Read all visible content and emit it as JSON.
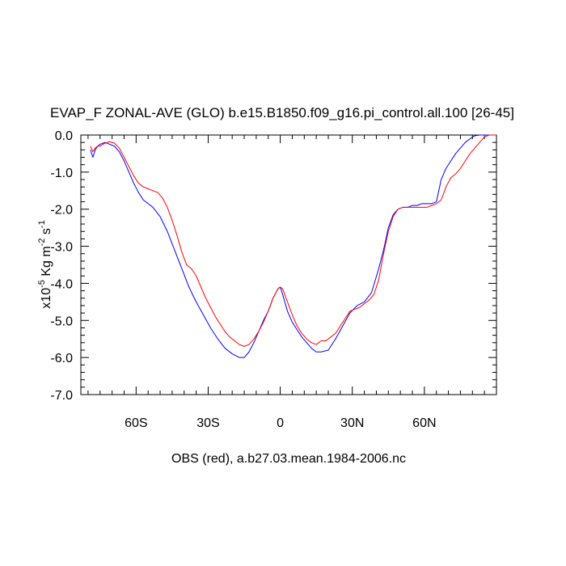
{
  "chart_data": {
    "type": "line",
    "title": "EVAP_F ZONAL-AVE (GLO) b.e15.B1850.f09_g16.pi_control.all.100 [26-45]",
    "xlabel": "OBS (red), a.b27.03.mean.1984-2006.nc",
    "ylabel_main": "x10",
    "ylabel_exp": "-5",
    "ylabel_units": " Kg m",
    "ylabel_exp2": "-2",
    "ylabel_s": " s",
    "ylabel_exp3": "-1",
    "xlim": [
      -83,
      90
    ],
    "ylim": [
      -7.0,
      0.0
    ],
    "x_ticks": [
      {
        "value": -60,
        "label": "60S"
      },
      {
        "value": -30,
        "label": "30S"
      },
      {
        "value": 0,
        "label": "0"
      },
      {
        "value": 30,
        "label": "30N"
      },
      {
        "value": 60,
        "label": "60N"
      }
    ],
    "y_ticks": [
      {
        "value": 0.0,
        "label": "0.0"
      },
      {
        "value": -1.0,
        "label": "-1.0"
      },
      {
        "value": -2.0,
        "label": "-2.0"
      },
      {
        "value": -3.0,
        "label": "-3.0"
      },
      {
        "value": -4.0,
        "label": "-4.0"
      },
      {
        "value": -5.0,
        "label": "-5.0"
      },
      {
        "value": -6.0,
        "label": "-6.0"
      },
      {
        "value": -7.0,
        "label": "-7.0"
      }
    ],
    "series": [
      {
        "color": "#0000ff",
        "x": [
          -79,
          -78,
          -77,
          -76,
          -75,
          -73,
          -71,
          -69,
          -67,
          -65,
          -63,
          -61,
          -59,
          -57,
          -55,
          -53,
          -50,
          -47,
          -44,
          -41,
          -38,
          -35,
          -32,
          -29,
          -26,
          -23,
          -20,
          -17,
          -15,
          -13,
          -11,
          -9,
          -7,
          -5,
          -3,
          -1,
          0,
          1,
          3,
          5,
          7,
          9,
          11,
          13,
          15,
          17,
          20,
          23,
          26,
          29,
          32,
          35,
          38,
          41,
          43,
          45,
          47,
          49,
          51,
          53,
          55,
          57,
          59,
          61,
          63,
          65,
          67,
          69,
          71,
          73,
          75,
          77,
          79,
          81,
          83,
          85,
          87,
          90
        ],
        "y": [
          -0.4,
          -0.6,
          -0.4,
          -0.3,
          -0.25,
          -0.2,
          -0.25,
          -0.3,
          -0.45,
          -0.7,
          -1.0,
          -1.3,
          -1.55,
          -1.75,
          -1.85,
          -1.95,
          -2.2,
          -2.6,
          -3.1,
          -3.6,
          -4.1,
          -4.5,
          -4.85,
          -5.2,
          -5.5,
          -5.75,
          -5.9,
          -6.0,
          -6.0,
          -5.85,
          -5.6,
          -5.3,
          -5.0,
          -4.75,
          -4.4,
          -4.15,
          -4.1,
          -4.3,
          -4.75,
          -5.05,
          -5.25,
          -5.45,
          -5.6,
          -5.75,
          -5.85,
          -5.85,
          -5.8,
          -5.5,
          -5.15,
          -4.8,
          -4.6,
          -4.5,
          -4.25,
          -3.6,
          -3.1,
          -2.5,
          -2.15,
          -2.0,
          -1.95,
          -1.95,
          -1.9,
          -1.9,
          -1.85,
          -1.85,
          -1.85,
          -1.8,
          -1.2,
          -0.9,
          -0.7,
          -0.5,
          -0.35,
          -0.2,
          -0.1,
          -0.02,
          0.0,
          0.0,
          0.0,
          0.0
        ]
      },
      {
        "color": "#ff0000",
        "x": [
          -79,
          -78,
          -77,
          -76,
          -75,
          -73,
          -71,
          -69,
          -67,
          -65,
          -63,
          -61,
          -59,
          -57,
          -55,
          -53,
          -51,
          -49,
          -47,
          -45,
          -43,
          -41,
          -39,
          -37,
          -35,
          -33,
          -31,
          -29,
          -27,
          -25,
          -23,
          -21,
          -19,
          -17,
          -15,
          -13,
          -11,
          -9,
          -7,
          -5,
          -3,
          -1,
          0,
          1,
          3,
          5,
          7,
          9,
          11,
          13,
          15,
          17,
          19,
          21,
          23,
          25,
          27,
          29,
          31,
          33,
          35,
          37,
          39,
          41,
          43,
          45,
          47,
          49,
          51,
          53,
          55,
          57,
          59,
          61,
          63,
          65,
          67,
          69,
          71,
          73,
          75,
          77,
          79,
          81,
          83,
          85,
          87,
          90
        ],
        "y": [
          -0.3,
          -0.45,
          -0.35,
          -0.3,
          -0.3,
          -0.22,
          -0.18,
          -0.22,
          -0.35,
          -0.6,
          -0.85,
          -1.1,
          -1.3,
          -1.4,
          -1.45,
          -1.5,
          -1.55,
          -1.7,
          -1.95,
          -2.3,
          -2.7,
          -3.15,
          -3.5,
          -3.6,
          -3.8,
          -4.1,
          -4.4,
          -4.65,
          -4.9,
          -5.1,
          -5.3,
          -5.45,
          -5.55,
          -5.65,
          -5.7,
          -5.65,
          -5.5,
          -5.3,
          -5.05,
          -4.75,
          -4.4,
          -4.15,
          -4.1,
          -4.15,
          -4.5,
          -4.85,
          -5.15,
          -5.35,
          -5.5,
          -5.6,
          -5.65,
          -5.55,
          -5.55,
          -5.45,
          -5.35,
          -5.15,
          -4.95,
          -4.75,
          -4.7,
          -4.65,
          -4.55,
          -4.45,
          -4.3,
          -3.9,
          -3.2,
          -2.6,
          -2.2,
          -2.0,
          -1.95,
          -1.95,
          -1.95,
          -1.95,
          -1.95,
          -1.95,
          -1.9,
          -1.85,
          -1.75,
          -1.4,
          -1.15,
          -1.05,
          -0.9,
          -0.7,
          -0.5,
          -0.35,
          -0.2,
          -0.05,
          0.0,
          0.0
        ]
      }
    ]
  }
}
